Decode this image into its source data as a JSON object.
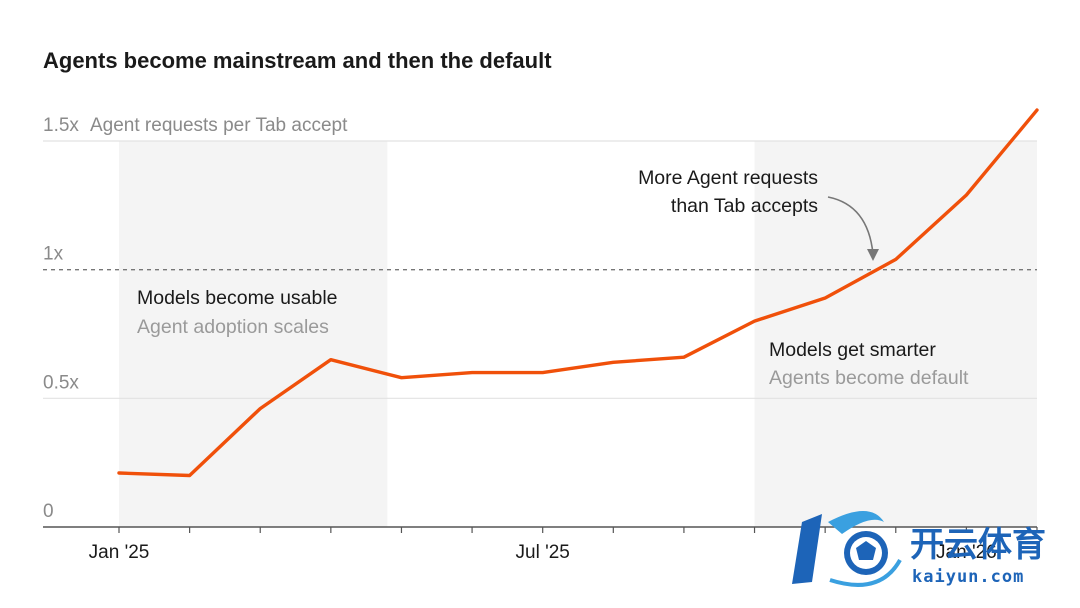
{
  "colors": {
    "line": "#f0500a",
    "shade": "#f4f4f4",
    "grid": "#e2e2e2",
    "axis": "#555555",
    "reference": "#777777",
    "watermark": "#1d64b8"
  },
  "chart_data": {
    "type": "line",
    "title": "Agents become mainstream and then the default",
    "ylabel": "Agent requests per Tab accept",
    "ylim": [
      0,
      1.5
    ],
    "y_ticks": [
      {
        "value": 0,
        "label": "0"
      },
      {
        "value": 0.5,
        "label": "0.5x"
      },
      {
        "value": 1.0,
        "label": "1x"
      },
      {
        "value": 1.5,
        "label": "1.5x"
      }
    ],
    "x_ticks": [
      {
        "index": 0,
        "label": "Jan '25"
      },
      {
        "index": 6,
        "label": "Jul '25"
      },
      {
        "index": 12,
        "label": "Jan '26"
      }
    ],
    "x_range": [
      0,
      13
    ],
    "grid": true,
    "reference_line": {
      "value": 1.0,
      "style": "dashed"
    },
    "series": [
      {
        "x": [
          0,
          1,
          2,
          3,
          4,
          5,
          6,
          7,
          8,
          9,
          10,
          11,
          12,
          13
        ],
        "values": [
          0.21,
          0.2,
          0.46,
          0.65,
          0.58,
          0.6,
          0.6,
          0.64,
          0.66,
          0.8,
          0.89,
          1.04,
          1.29,
          1.62
        ]
      }
    ],
    "shaded_regions": [
      {
        "from": 0,
        "to": 3.8,
        "heading": "Models become usable",
        "subheading": "Agent adoption scales"
      },
      {
        "from": 9,
        "to": 13,
        "heading": "Models get smarter",
        "subheading": "Agents become default"
      }
    ],
    "callout": {
      "lines": [
        "More Agent requests",
        "than Tab accepts"
      ],
      "target": {
        "x": 10.87,
        "y": 1.0
      }
    }
  },
  "watermark": {
    "brand_cn": "开云体育",
    "brand_en": "kaiyun.com"
  }
}
